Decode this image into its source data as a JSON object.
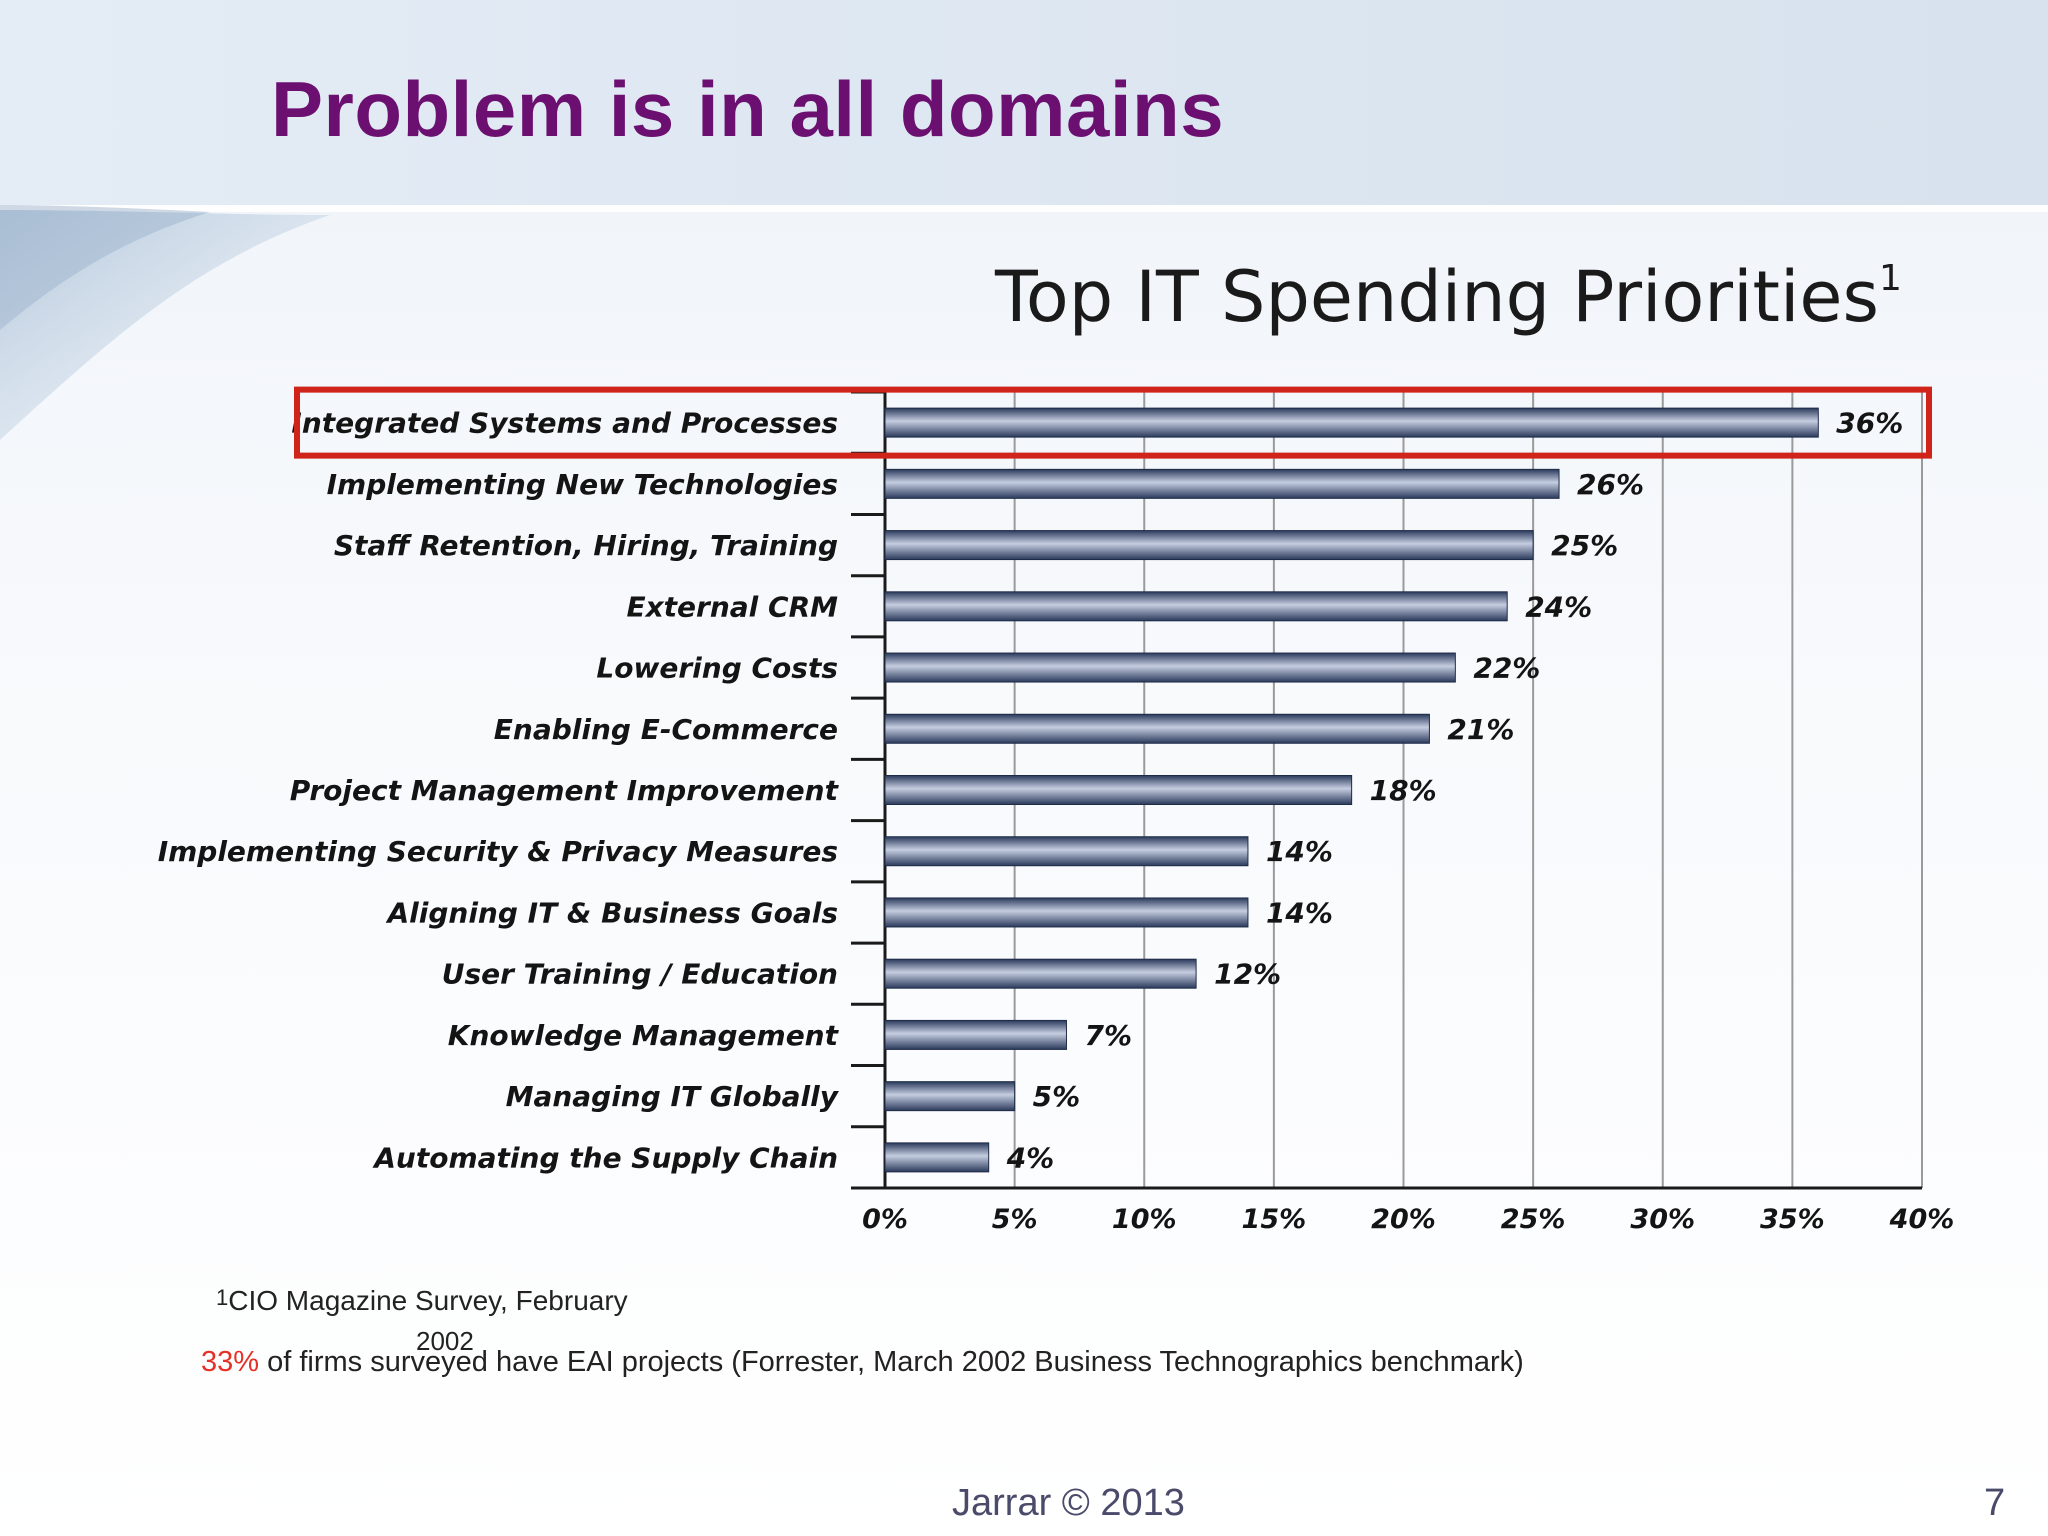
{
  "slide": {
    "title": "Problem is in all domains",
    "chart_title_main": "Top IT Spending Priorities",
    "chart_title_sup": "1",
    "footnote_marker": "1",
    "footnote_text": "CIO Magazine Survey, February",
    "footnote_year": "2002",
    "eai_pct": "33%",
    "eai_text": " of  firms surveyed have EAI projects (Forrester, March 2002 Business Technographics benchmark)",
    "footer_author": "Jarrar © 2013",
    "page_number": "7"
  },
  "colors": {
    "title": "#6b1070",
    "bar_dark": "#2b3a5c",
    "bar_light": "#c5cde0",
    "highlight_box": "#d0231a",
    "accent_red": "#e53228"
  },
  "chart_data": {
    "type": "bar",
    "orientation": "horizontal",
    "title": "Top IT Spending Priorities",
    "categories": [
      "Integrated Systems and Processes",
      "Implementing New Technologies",
      "Staff Retention, Hiring, Training",
      "External CRM",
      "Lowering Costs",
      "Enabling E-Commerce",
      "Project Management Improvement",
      "Implementing Security & Privacy Measures",
      "Aligning IT & Business Goals",
      "User Training / Education",
      "Knowledge Management",
      "Managing IT Globally",
      "Automating the Supply Chain"
    ],
    "values": [
      36,
      26,
      25,
      24,
      22,
      21,
      18,
      14,
      14,
      12,
      7,
      5,
      4
    ],
    "value_labels": [
      "36%",
      "26%",
      "25%",
      "24%",
      "22%",
      "21%",
      "18%",
      "14%",
      "14%",
      "12%",
      "7%",
      "5%",
      "4%"
    ],
    "xlim": [
      0,
      40
    ],
    "xticks": [
      0,
      5,
      10,
      15,
      20,
      25,
      30,
      35,
      40
    ],
    "xtick_labels": [
      "0%",
      "5%",
      "10%",
      "15%",
      "20%",
      "25%",
      "30%",
      "35%",
      "40%"
    ],
    "highlighted_category": "Integrated Systems and Processes",
    "grid": true
  }
}
